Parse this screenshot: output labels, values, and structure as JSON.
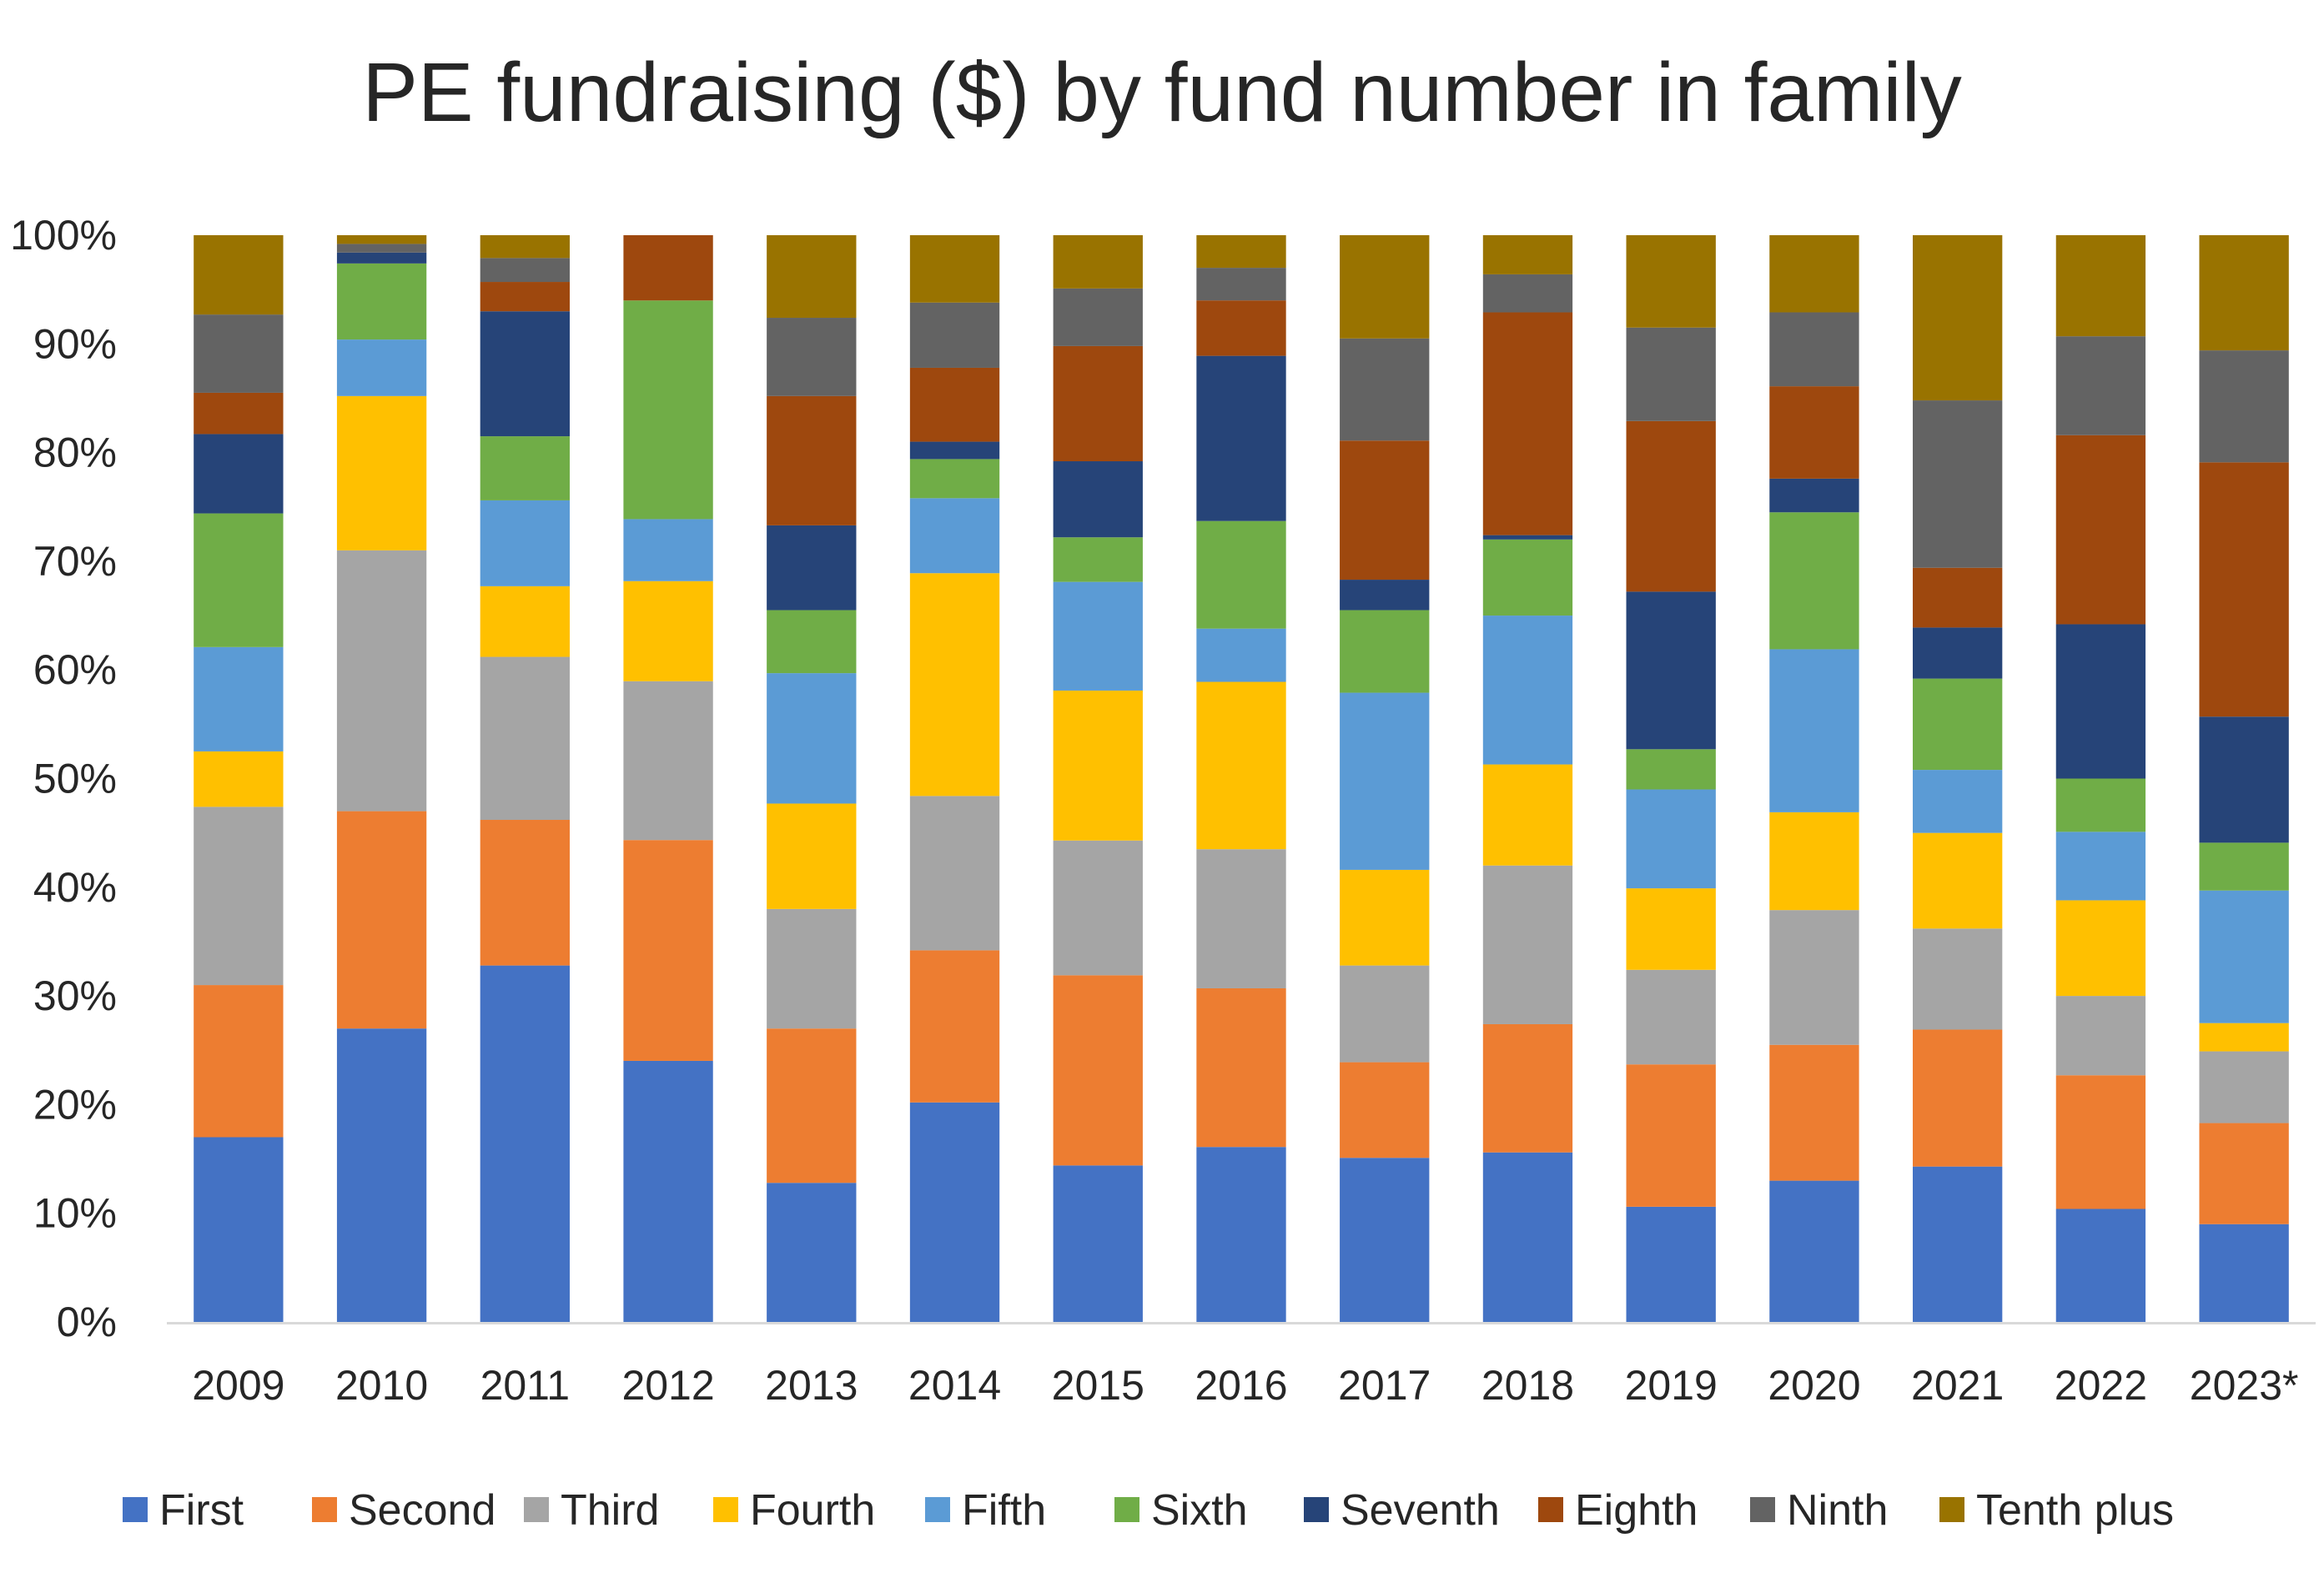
{
  "chart_data": {
    "type": "bar",
    "stacked": true,
    "normalized": true,
    "title": "PE fundraising ($) by fund number in family",
    "xlabel": "",
    "ylabel": "",
    "ylim": [
      0,
      100
    ],
    "yticks": [
      "0%",
      "10%",
      "20%",
      "30%",
      "40%",
      "50%",
      "60%",
      "70%",
      "80%",
      "90%",
      "100%"
    ],
    "grid": false,
    "legend_position": "bottom",
    "categories": [
      "2009",
      "2010",
      "2011",
      "2012",
      "2013",
      "2014",
      "2015",
      "2016",
      "2017",
      "2018",
      "2019",
      "2020",
      "2021",
      "2022",
      "2023*"
    ],
    "series": [
      {
        "name": "First",
        "color": "#4472C4",
        "values": [
          17.0,
          27.0,
          32.8,
          24.0,
          12.8,
          20.2,
          14.4,
          16.1,
          15.1,
          15.6,
          10.6,
          13.0,
          14.3,
          10.4,
          9.0
        ]
      },
      {
        "name": "Second",
        "color": "#ED7D31",
        "values": [
          14.0,
          20.0,
          13.4,
          20.3,
          14.2,
          14.0,
          17.5,
          14.6,
          8.8,
          11.8,
          13.1,
          12.5,
          12.6,
          12.3,
          9.3
        ]
      },
      {
        "name": "Third",
        "color": "#A5A5A5",
        "values": [
          16.4,
          24.0,
          15.0,
          14.6,
          11.0,
          14.2,
          12.4,
          12.8,
          8.9,
          14.6,
          8.7,
          12.4,
          9.3,
          7.3,
          6.6
        ]
      },
      {
        "name": "Fourth",
        "color": "#FFC000",
        "values": [
          5.1,
          14.2,
          6.5,
          9.2,
          9.7,
          20.5,
          13.8,
          15.4,
          8.8,
          9.3,
          7.5,
          9.0,
          8.8,
          8.8,
          2.6
        ]
      },
      {
        "name": "Fifth",
        "color": "#5B9BD5",
        "values": [
          9.6,
          5.2,
          7.9,
          5.7,
          12.0,
          6.9,
          10.0,
          4.9,
          16.3,
          13.7,
          9.1,
          15.0,
          5.8,
          6.3,
          12.2
        ]
      },
      {
        "name": "Sixth",
        "color": "#70AD47",
        "values": [
          12.3,
          7.0,
          5.9,
          20.1,
          5.8,
          3.6,
          4.1,
          9.9,
          7.6,
          7.0,
          3.7,
          12.6,
          8.4,
          4.9,
          4.4
        ]
      },
      {
        "name": "Seventh",
        "color": "#264478",
        "values": [
          7.3,
          1.0,
          11.5,
          0.0,
          7.8,
          1.6,
          7.0,
          15.2,
          2.8,
          0.4,
          14.5,
          3.1,
          4.7,
          14.2,
          11.6
        ]
      },
      {
        "name": "Eighth",
        "color": "#9E480E",
        "values": [
          3.8,
          0.0,
          2.7,
          6.0,
          11.9,
          6.8,
          10.6,
          5.1,
          12.8,
          20.5,
          15.7,
          8.5,
          5.5,
          17.4,
          23.4
        ]
      },
      {
        "name": "Ninth",
        "color": "#636363",
        "values": [
          7.2,
          0.8,
          2.2,
          0.0,
          7.2,
          6.0,
          5.3,
          3.0,
          9.4,
          3.5,
          8.6,
          6.8,
          15.4,
          9.1,
          10.3
        ]
      },
      {
        "name": "Tenth plus",
        "color": "#997300",
        "values": [
          7.3,
          0.8,
          2.1,
          0.0,
          7.6,
          6.2,
          4.9,
          3.0,
          9.5,
          3.6,
          8.5,
          7.1,
          15.2,
          9.3,
          10.6
        ]
      }
    ]
  }
}
